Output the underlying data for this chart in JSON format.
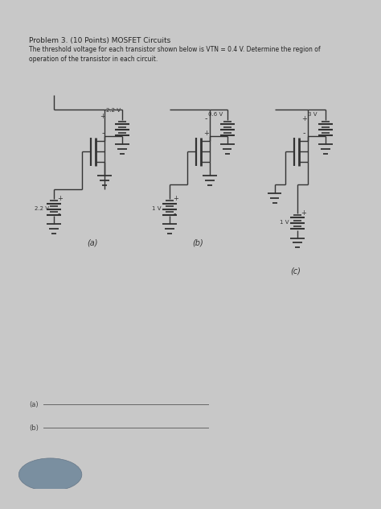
{
  "title": "Problem 3. (10 Points) MOSFET Circuits",
  "subtitle_line1": "The threshold voltage for each transistor shown below is VTN = 0.4 V. Determine the region of",
  "subtitle_line2": "operation of the transistor in each circuit.",
  "bg_color": "#c8c8c8",
  "paper_color": "#efefed",
  "circuit_color": "#333333",
  "label_a": "(a)",
  "label_b": "(b)",
  "label_c": "(c)",
  "answer_a": "(a)",
  "answer_b": "(b)",
  "text_color": "#222222",
  "finger_color": "#7a8fa0"
}
